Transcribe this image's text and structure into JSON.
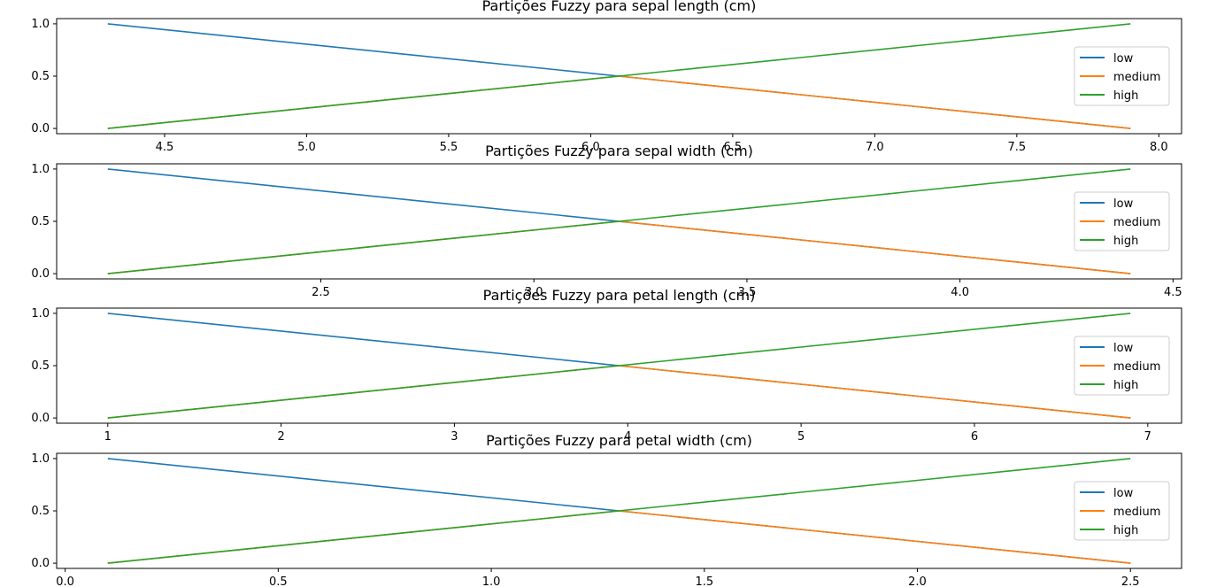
{
  "colors": {
    "low": "#1f77b4",
    "medium": "#ff7f0e",
    "high": "#2ca02c",
    "axis": "#000000",
    "background": "#ffffff"
  },
  "chart_data": [
    {
      "type": "line",
      "title": "Partições Fuzzy para sepal length (cm)",
      "xlabel": "",
      "ylabel": "",
      "x_range": [
        4.3,
        7.9
      ],
      "xlim": [
        4.12,
        8.08
      ],
      "ylim": [
        -0.05,
        1.05
      ],
      "xticks": [
        4.5,
        5.0,
        5.5,
        6.0,
        6.5,
        7.0,
        7.5,
        8.0
      ],
      "xtick_labels": [
        "4.5",
        "5.0",
        "5.5",
        "6.0",
        "6.5",
        "7.0",
        "7.5",
        "8.0"
      ],
      "yticks": [
        0.0,
        0.5,
        1.0
      ],
      "ytick_labels": [
        "0.0",
        "0.5",
        "1.0"
      ],
      "grid": false,
      "legend": "center-right",
      "series": [
        {
          "name": "low",
          "color": "#1f77b4",
          "x": [
            4.3,
            7.9
          ],
          "y": [
            1.0,
            0.0
          ]
        },
        {
          "name": "medium",
          "color": "#ff7f0e",
          "x": [
            4.3,
            6.1,
            7.9
          ],
          "y": [
            0.0,
            0.5,
            0.0
          ]
        },
        {
          "name": "high",
          "color": "#2ca02c",
          "x": [
            4.3,
            7.9
          ],
          "y": [
            0.0,
            1.0
          ]
        }
      ]
    },
    {
      "type": "line",
      "title": "Partições Fuzzy para sepal width (cm)",
      "xlabel": "",
      "ylabel": "",
      "x_range": [
        2.0,
        4.4
      ],
      "xlim": [
        1.88,
        4.52
      ],
      "ylim": [
        -0.05,
        1.05
      ],
      "xticks": [
        2.5,
        3.0,
        3.5,
        4.0,
        4.5
      ],
      "xtick_labels": [
        "2.5",
        "3.0",
        "3.5",
        "4.0",
        "4.5"
      ],
      "yticks": [
        0.0,
        0.5,
        1.0
      ],
      "ytick_labels": [
        "0.0",
        "0.5",
        "1.0"
      ],
      "grid": false,
      "legend": "center-right",
      "series": [
        {
          "name": "low",
          "color": "#1f77b4",
          "x": [
            2.0,
            4.4
          ],
          "y": [
            1.0,
            0.0
          ]
        },
        {
          "name": "medium",
          "color": "#ff7f0e",
          "x": [
            2.0,
            3.2,
            4.4
          ],
          "y": [
            0.0,
            0.5,
            0.0
          ]
        },
        {
          "name": "high",
          "color": "#2ca02c",
          "x": [
            2.0,
            4.4
          ],
          "y": [
            0.0,
            1.0
          ]
        }
      ]
    },
    {
      "type": "line",
      "title": "Partições Fuzzy para petal length (cm)",
      "xlabel": "",
      "ylabel": "",
      "x_range": [
        1.0,
        6.9
      ],
      "xlim": [
        0.705,
        7.195
      ],
      "ylim": [
        -0.05,
        1.05
      ],
      "xticks": [
        1,
        2,
        3,
        4,
        5,
        6,
        7
      ],
      "xtick_labels": [
        "1",
        "2",
        "3",
        "4",
        "5",
        "6",
        "7"
      ],
      "yticks": [
        0.0,
        0.5,
        1.0
      ],
      "ytick_labels": [
        "0.0",
        "0.5",
        "1.0"
      ],
      "grid": false,
      "legend": "center-right",
      "series": [
        {
          "name": "low",
          "color": "#1f77b4",
          "x": [
            1.0,
            6.9
          ],
          "y": [
            1.0,
            0.0
          ]
        },
        {
          "name": "medium",
          "color": "#ff7f0e",
          "x": [
            1.0,
            3.95,
            6.9
          ],
          "y": [
            0.0,
            0.5,
            0.0
          ]
        },
        {
          "name": "high",
          "color": "#2ca02c",
          "x": [
            1.0,
            6.9
          ],
          "y": [
            0.0,
            1.0
          ]
        }
      ]
    },
    {
      "type": "line",
      "title": "Partições Fuzzy para petal width (cm)",
      "xlabel": "",
      "ylabel": "",
      "x_range": [
        0.1,
        2.5
      ],
      "xlim": [
        -0.02,
        2.62
      ],
      "ylim": [
        -0.05,
        1.05
      ],
      "xticks": [
        0.0,
        0.5,
        1.0,
        1.5,
        2.0,
        2.5
      ],
      "xtick_labels": [
        "0.0",
        "0.5",
        "1.0",
        "1.5",
        "2.0",
        "2.5"
      ],
      "yticks": [
        0.0,
        0.5,
        1.0
      ],
      "ytick_labels": [
        "0.0",
        "0.5",
        "1.0"
      ],
      "grid": false,
      "legend": "center-right",
      "series": [
        {
          "name": "low",
          "color": "#1f77b4",
          "x": [
            0.1,
            2.5
          ],
          "y": [
            1.0,
            0.0
          ]
        },
        {
          "name": "medium",
          "color": "#ff7f0e",
          "x": [
            0.1,
            1.3,
            2.5
          ],
          "y": [
            0.0,
            0.5,
            0.0
          ]
        },
        {
          "name": "high",
          "color": "#2ca02c",
          "x": [
            0.1,
            2.5
          ],
          "y": [
            0.0,
            1.0
          ]
        }
      ]
    }
  ]
}
